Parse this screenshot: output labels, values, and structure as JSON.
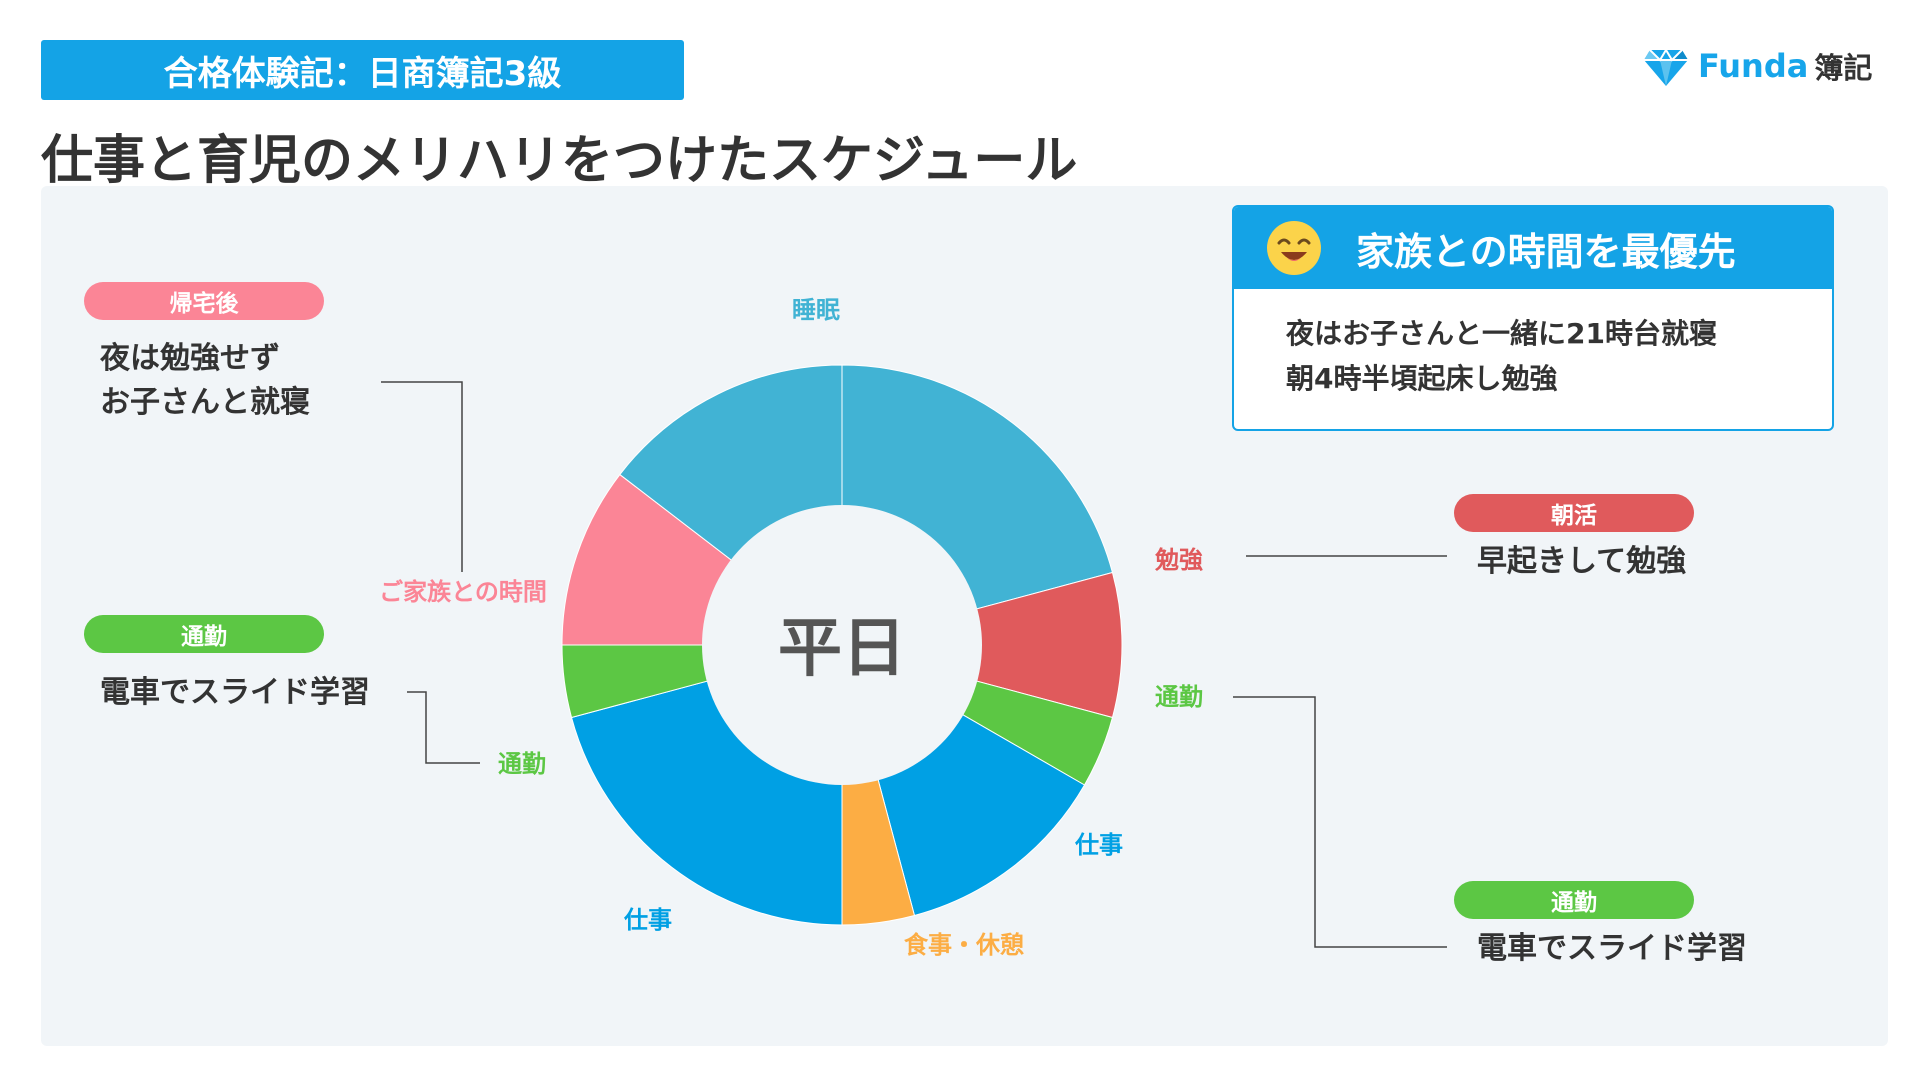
{
  "header": {
    "tag": "合格体験記：日商簿記3級",
    "title": "仕事と育児のメリハリをつけたスケジュール",
    "brand_name": "Funda",
    "brand_suffix": "簿記",
    "brand_icon": "diamond-icon"
  },
  "highlight": {
    "icon": "smiley-icon",
    "title": "家族との時間を最優先",
    "lines": [
      "夜はお子さんと一緒に21時台就寝",
      "朝4時半頃起床し勉強"
    ]
  },
  "callouts": {
    "after_work": {
      "pill": "帰宅後",
      "lines": [
        "夜は勉強せず",
        "お子さんと就寝"
      ],
      "color": "#fb8596"
    },
    "commute_left": {
      "pill": "通勤",
      "text": "電車でスライド学習",
      "color": "#5cc744"
    },
    "morning": {
      "pill": "朝活",
      "text": "早起きして勉強",
      "color": "#e05a5c"
    },
    "commute_right": {
      "pill": "通勤",
      "text": "電車でスライド学習",
      "color": "#5cc744"
    }
  },
  "chart_data": {
    "type": "pie",
    "center_label": "平日",
    "segments": [
      {
        "label": "睡眠",
        "value": 5.0,
        "color": "#41b3d4",
        "shown_label": "睡眠"
      },
      {
        "label": "勉強",
        "value": 2.0,
        "color": "#e05a5c",
        "shown_label": "勉強"
      },
      {
        "label": "通勤",
        "value": 1.0,
        "color": "#5cc744",
        "shown_label": "通勤"
      },
      {
        "label": "仕事",
        "value": 3.0,
        "color": "#00a0e4",
        "shown_label": "仕事"
      },
      {
        "label": "食事・休憩",
        "value": 1.0,
        "color": "#fcad44",
        "shown_label": "食事・休憩"
      },
      {
        "label": "仕事",
        "value": 5.0,
        "color": "#00a0e4",
        "shown_label": "仕事"
      },
      {
        "label": "通勤",
        "value": 1.0,
        "color": "#5cc744",
        "shown_label": "通勤"
      },
      {
        "label": "ご家族との時間",
        "value": 2.5,
        "color": "#fb8596",
        "shown_label": "ご家族との時間"
      },
      {
        "label": "睡眠",
        "value": 3.5,
        "color": "#41b3d4",
        "shown_label": ""
      }
    ],
    "unit": "hours"
  }
}
